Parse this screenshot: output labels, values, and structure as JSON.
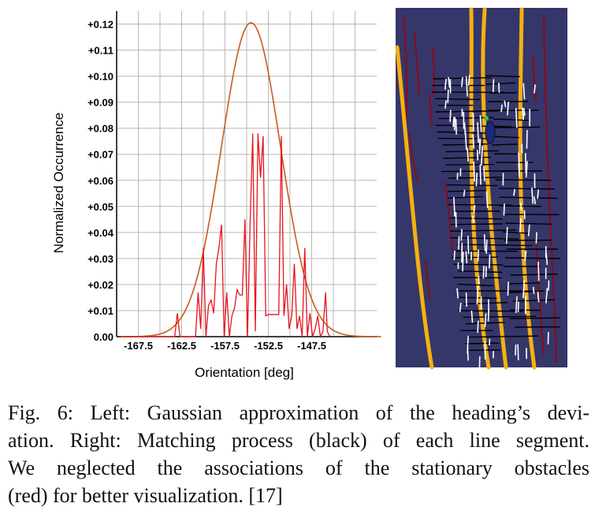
{
  "chart_data": {
    "type": "line",
    "title": "",
    "xlabel": "Orientation [deg]",
    "ylabel": "Normalized Occurrence",
    "xlim": [
      -170,
      -140
    ],
    "ylim": [
      0,
      0.125
    ],
    "x_tick_labels": [
      "-167.5",
      "-162.5",
      "-157.5",
      "-152.5",
      "-147.5"
    ],
    "x_tick_values": [
      -167.5,
      -162.5,
      -157.5,
      -152.5,
      -147.5
    ],
    "y_tick_labels": [
      "0.00",
      "+0.01",
      "+0.02",
      "+0.03",
      "+0.04",
      "+0.05",
      "+0.06",
      "+0.07",
      "+0.08",
      "+0.09",
      "+0.10",
      "+0.11",
      "+0.12"
    ],
    "y_tick_values": [
      0,
      0.01,
      0.02,
      0.03,
      0.04,
      0.05,
      0.06,
      0.07,
      0.08,
      0.09,
      0.1,
      0.11,
      0.12
    ],
    "grid": true,
    "series": [
      {
        "kind": "gaussian",
        "color": "#c85a1e",
        "mean": -154.5,
        "sigma": 3.4,
        "peak": 0.1205,
        "x_range": [
          -169.5,
          -139.5
        ]
      },
      {
        "kind": "histogram",
        "color": "#e8141e",
        "x": [
          -169.3,
          -163.3,
          -163.0,
          -162.7,
          -162.4,
          -162.1,
          -161.8,
          -161.5,
          -161.2,
          -160.9,
          -160.6,
          -160.3,
          -160.0,
          -159.7,
          -159.4,
          -159.1,
          -158.8,
          -158.5,
          -158.2,
          -157.9,
          -157.6,
          -157.3,
          -157.0,
          -156.7,
          -156.4,
          -156.1,
          -155.8,
          -155.5,
          -155.2,
          -154.9,
          -154.6,
          -154.3,
          -154.0,
          -153.7,
          -153.4,
          -153.1,
          -152.8,
          -152.5,
          -152.2,
          -151.9,
          -151.6,
          -151.3,
          -151.0,
          -150.7,
          -150.4,
          -150.1,
          -149.8,
          -149.5,
          -149.2,
          -148.9,
          -148.6,
          -148.3,
          -148.0,
          -147.7,
          -147.4,
          -147.1,
          -146.8,
          -146.5,
          -146.2,
          -145.9,
          -145.7,
          -145.4
        ],
        "y": [
          0,
          0,
          0.009,
          0,
          0,
          0,
          0,
          0,
          0,
          0,
          0.017,
          0.003,
          0.034,
          0,
          0.012,
          0.014,
          0.009,
          0.028,
          0.034,
          0.043,
          0,
          0.017,
          0,
          0.008,
          0.011,
          0.018,
          0.016,
          0.016,
          0.045,
          0,
          0.044,
          0.078,
          0.002,
          0.078,
          0.061,
          0.077,
          0.008,
          0.0085,
          0.0085,
          0.0085,
          0.0085,
          0.0085,
          0.077,
          0.008,
          0.02,
          0.003,
          0.008,
          0.028,
          0.003,
          0.008,
          0,
          0.034,
          0,
          0.009,
          0,
          0.003,
          0.008,
          0,
          0.002,
          0.017,
          0.002,
          0
        ]
      }
    ]
  },
  "caption": {
    "lines": [
      "Fig. 6: Left: Gaussian approximation of the heading’s devi-",
      "ation. Right: Matching process (black) of each line segment.",
      "We neglected the associations of the stationary obstacles",
      "(red) for better visualization. [17]"
    ]
  },
  "map_panel": {
    "background_color": "#35366a",
    "lane_color": "#f5b10f",
    "obstacle_color": "#8b0a1a",
    "segment_color": "#ffffff",
    "match_color": "#000000",
    "vehicle_color": "#1a2a7a",
    "marker_color": "#2ecc40"
  }
}
